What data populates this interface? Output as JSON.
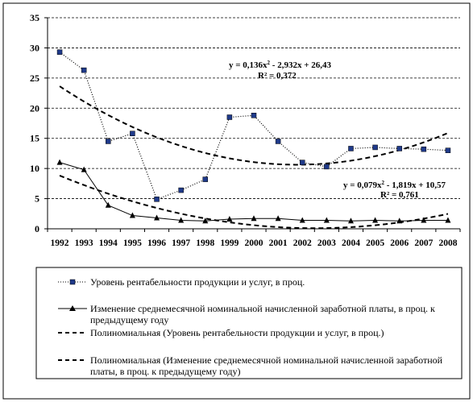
{
  "chart_data": {
    "type": "line",
    "categories": [
      "1992",
      "1993",
      "1994",
      "1995",
      "1996",
      "1997",
      "1998",
      "1999",
      "2000",
      "2001",
      "2002",
      "2003",
      "2004",
      "2005",
      "2006",
      "2007",
      "2008"
    ],
    "ylim": [
      0,
      35
    ],
    "yticks": [
      "0",
      "5",
      "10",
      "15",
      "20",
      "25",
      "30",
      "35"
    ],
    "grid": true,
    "series": [
      {
        "name": "Уровень рентабельности продукции и услуг, в проц.",
        "style": "dotted-square",
        "values": [
          29.3,
          26.3,
          14.5,
          15.8,
          4.9,
          6.4,
          8.2,
          18.5,
          18.8,
          14.5,
          11.0,
          10.3,
          13.3,
          13.5,
          13.3,
          13.2,
          13.0
        ]
      },
      {
        "name": "Изменение среднемесячной номинальной начисленной  заработной платы, в проц. к предыдущему году",
        "style": "solid-triangle",
        "values": [
          11.0,
          9.8,
          3.9,
          2.2,
          1.8,
          1.4,
          1.3,
          1.6,
          1.7,
          1.7,
          1.4,
          1.4,
          1.3,
          1.4,
          1.3,
          1.4,
          1.4
        ]
      },
      {
        "name": "Полиномиальная (Уровень рентабельности  продукции и услуг, в проц.)",
        "style": "dashed",
        "trend_of": 0,
        "equation": "y = 0,136x² - 2,932x + 26,43",
        "r2": "R² = 0,372",
        "coeffs": [
          0.136,
          -2.932,
          26.43
        ]
      },
      {
        "name": "Полиномиальная (Изменение среднемесячной номинальной начисленной  заработной платы, в проц. к предыдущему году)",
        "style": "dashed",
        "trend_of": 1,
        "equation": "y = 0,079x² - 1,819x + 10,57",
        "r2": "R² = 0,761",
        "coeffs": [
          0.079,
          -1.819,
          10.57
        ]
      }
    ],
    "legend": "bottom"
  }
}
